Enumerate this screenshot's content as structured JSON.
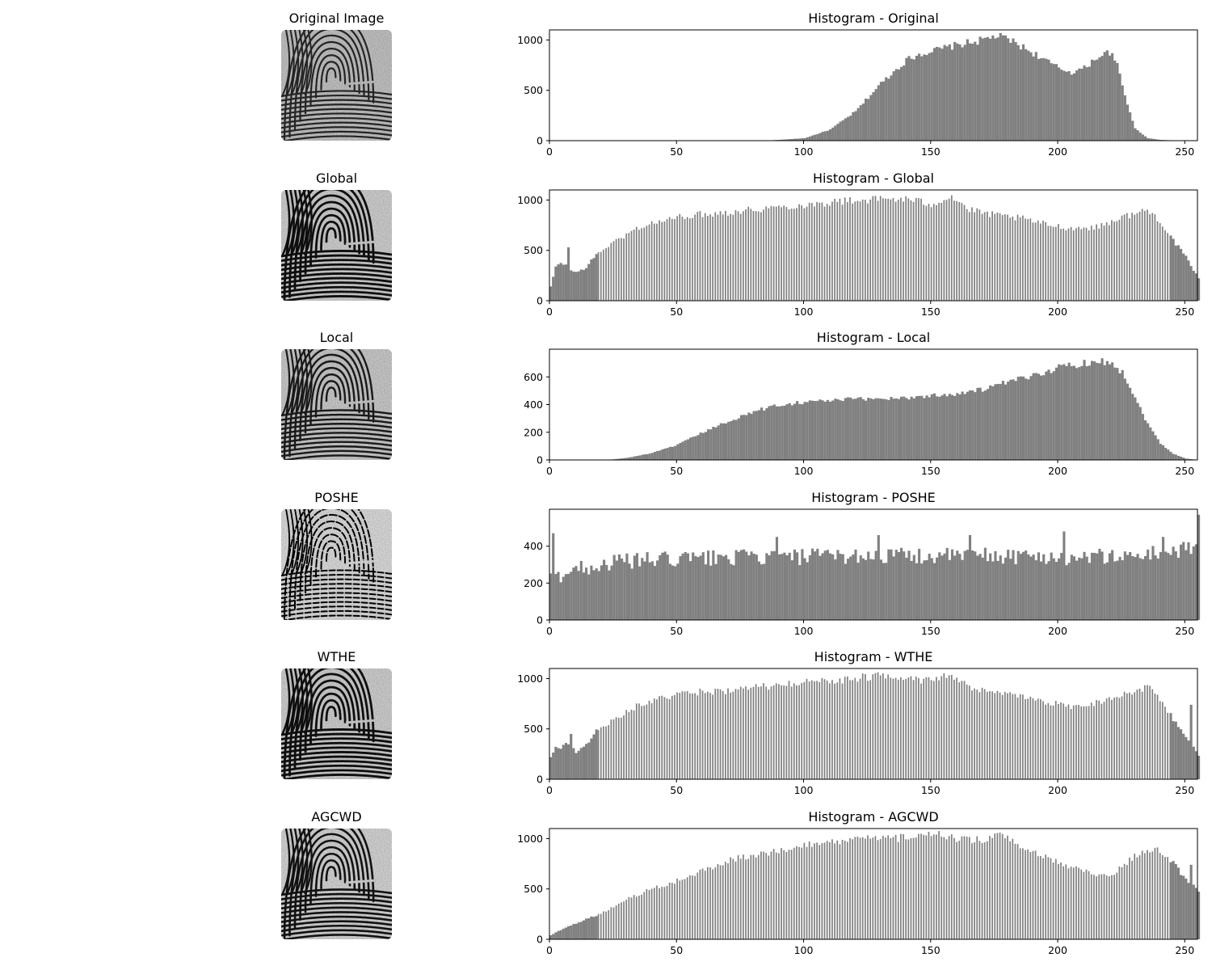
{
  "figure": {
    "panels": [
      {
        "image_title": "Original Image",
        "hist_title": "Histogram - Original"
      },
      {
        "image_title": "Global",
        "hist_title": "Histogram - Global"
      },
      {
        "image_title": "Local",
        "hist_title": "Histogram - Local"
      },
      {
        "image_title": "POSHE",
        "hist_title": "Histogram - POSHE"
      },
      {
        "image_title": "WTHE",
        "hist_title": "Histogram - WTHE"
      },
      {
        "image_title": "AGCWD",
        "hist_title": "Histogram - AGCWD"
      }
    ]
  },
  "colors": {
    "bar": "#808080",
    "axes": "#000000",
    "background": "#ffffff"
  },
  "chart_data": [
    {
      "type": "bar",
      "title": "Histogram - Original",
      "xlim": [
        0,
        255
      ],
      "ylim": [
        0,
        1100
      ],
      "xticks": [
        0,
        50,
        100,
        150,
        200,
        250
      ],
      "yticks": [
        0,
        500,
        1000
      ],
      "bins": 256,
      "profile": {
        "x": [
          0,
          84,
          90,
          100,
          110,
          120,
          130,
          140,
          145,
          150,
          160,
          170,
          175,
          180,
          190,
          200,
          205,
          210,
          215,
          220,
          223,
          226,
          230,
          235,
          240,
          245,
          255
        ],
        "y": [
          0,
          0,
          8,
          25,
          110,
          290,
          570,
          800,
          860,
          890,
          950,
          1000,
          1040,
          1010,
          870,
          720,
          680,
          720,
          830,
          880,
          750,
          450,
          120,
          25,
          8,
          2,
          0
        ]
      },
      "spikes": []
    },
    {
      "type": "bar",
      "title": "Histogram - Global",
      "xlim": [
        0,
        255
      ],
      "ylim": [
        0,
        1100
      ],
      "xticks": [
        0,
        50,
        100,
        150,
        200,
        250
      ],
      "yticks": [
        0,
        500,
        1000
      ],
      "bins": 256,
      "profile": {
        "x": [
          0,
          2,
          4,
          6,
          8,
          10,
          14,
          18,
          25,
          35,
          45,
          55,
          70,
          85,
          100,
          115,
          130,
          140,
          150,
          158,
          165,
          175,
          185,
          195,
          205,
          215,
          225,
          235,
          240,
          245,
          250,
          255
        ],
        "y": [
          140,
          330,
          380,
          350,
          300,
          280,
          330,
          460,
          580,
          730,
          800,
          850,
          880,
          920,
          950,
          990,
          1010,
          1010,
          960,
          1040,
          900,
          850,
          820,
          760,
          720,
          730,
          830,
          900,
          800,
          600,
          430,
          220
        ]
      },
      "spikes": [
        {
          "x": 7,
          "value": 530
        }
      ]
    },
    {
      "type": "bar",
      "title": "Histogram - Local",
      "xlim": [
        0,
        255
      ],
      "ylim": [
        0,
        800
      ],
      "xticks": [
        0,
        50,
        100,
        150,
        200,
        250
      ],
      "yticks": [
        0,
        200,
        400,
        600
      ],
      "bins": 256,
      "profile": {
        "x": [
          0,
          22,
          25,
          30,
          40,
          50,
          60,
          70,
          80,
          90,
          100,
          110,
          120,
          130,
          140,
          150,
          160,
          170,
          180,
          190,
          200,
          210,
          215,
          220,
          225,
          230,
          235,
          240,
          245,
          250,
          255
        ],
        "y": [
          0,
          0,
          5,
          15,
          50,
          110,
          200,
          280,
          350,
          400,
          420,
          430,
          440,
          445,
          450,
          465,
          480,
          510,
          560,
          610,
          670,
          700,
          720,
          700,
          640,
          450,
          260,
          120,
          45,
          10,
          0
        ]
      },
      "spikes": []
    },
    {
      "type": "bar",
      "title": "Histogram - POSHE",
      "xlim": [
        0,
        255
      ],
      "ylim": [
        0,
        600
      ],
      "xticks": [
        0,
        50,
        100,
        150,
        200,
        250
      ],
      "yticks": [
        0,
        200,
        400
      ],
      "bins": 256,
      "profile": {
        "x": [
          0,
          3,
          10,
          20,
          30,
          50,
          70,
          90,
          110,
          130,
          150,
          170,
          190,
          210,
          230,
          250,
          255
        ],
        "y": [
          250,
          240,
          280,
          300,
          320,
          330,
          340,
          340,
          345,
          350,
          345,
          350,
          345,
          340,
          350,
          380,
          400
        ]
      },
      "spikes": [
        {
          "x": 1,
          "value": 470
        },
        {
          "x": 89,
          "value": 450
        },
        {
          "x": 129,
          "value": 460
        },
        {
          "x": 165,
          "value": 460
        },
        {
          "x": 202,
          "value": 480
        },
        {
          "x": 241,
          "value": 450
        },
        {
          "x": 255,
          "value": 570
        }
      ]
    },
    {
      "type": "bar",
      "title": "Histogram - WTHE",
      "xlim": [
        0,
        255
      ],
      "ylim": [
        0,
        1100
      ],
      "xticks": [
        0,
        50,
        100,
        150,
        200,
        250
      ],
      "yticks": [
        0,
        500,
        1000
      ],
      "bins": 256,
      "profile": {
        "x": [
          0,
          2,
          4,
          6,
          8,
          10,
          14,
          18,
          25,
          35,
          45,
          55,
          70,
          85,
          100,
          115,
          130,
          140,
          150,
          158,
          165,
          175,
          185,
          195,
          205,
          215,
          225,
          235,
          240,
          245,
          250,
          255
        ],
        "y": [
          220,
          330,
          300,
          360,
          330,
          270,
          340,
          480,
          590,
          740,
          810,
          860,
          880,
          920,
          960,
          990,
          1030,
          1020,
          970,
          1040,
          900,
          860,
          820,
          770,
          720,
          760,
          840,
          920,
          800,
          600,
          420,
          240
        ]
      },
      "spikes": [
        {
          "x": 8,
          "value": 450
        },
        {
          "x": 252,
          "value": 740
        }
      ]
    },
    {
      "type": "bar",
      "title": "Histogram - AGCWD",
      "xlim": [
        0,
        255
      ],
      "ylim": [
        0,
        1100
      ],
      "xticks": [
        0,
        50,
        100,
        150,
        200,
        250
      ],
      "yticks": [
        0,
        500,
        1000
      ],
      "bins": 256,
      "profile": {
        "x": [
          0,
          3,
          6,
          10,
          15,
          20,
          25,
          30,
          40,
          50,
          60,
          70,
          80,
          90,
          100,
          110,
          120,
          130,
          140,
          150,
          155,
          160,
          170,
          178,
          185,
          195,
          200,
          210,
          220,
          230,
          238,
          245,
          250,
          255
        ],
        "y": [
          40,
          80,
          120,
          160,
          210,
          260,
          320,
          400,
          500,
          580,
          680,
          780,
          840,
          880,
          930,
          960,
          990,
          1000,
          1010,
          1030,
          1040,
          1000,
          980,
          1040,
          900,
          820,
          760,
          680,
          620,
          830,
          900,
          760,
          600,
          480
        ]
      },
      "spikes": [
        {
          "x": 252,
          "value": 740
        }
      ]
    }
  ]
}
